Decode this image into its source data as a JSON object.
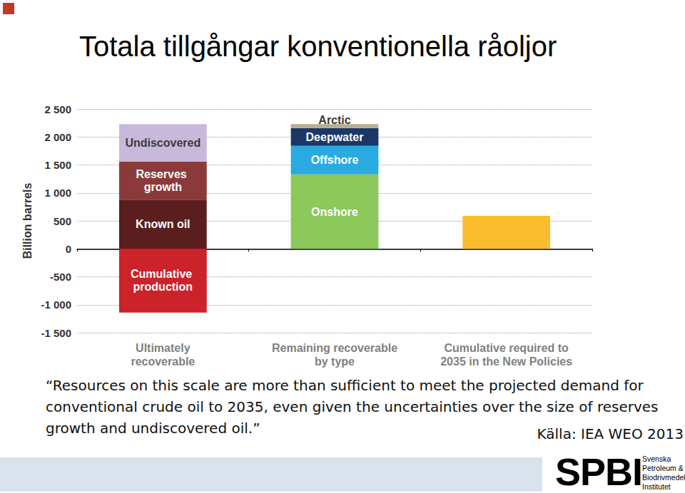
{
  "chart_data": {
    "type": "bar",
    "title": "Totala tillgångar konventionella råoljor",
    "y_label": "Billion barrels",
    "stacked": true,
    "grid": true,
    "categories": [
      "Ultimately\nrecoverable",
      "Remaining recoverable\nby type",
      "Cumulative required to\n2035 in the New Policies"
    ],
    "series": [
      {
        "name": "Known oil",
        "color": "#5a1e1e",
        "values": [
          880,
          null,
          null
        ]
      },
      {
        "name": "Reserves growth",
        "color": "#8b3a3a",
        "values": [
          680,
          null,
          null
        ]
      },
      {
        "name": "Undiscovered",
        "color": "#c7b9d9",
        "values": [
          670,
          null,
          null
        ]
      },
      {
        "name": "Cumulative production",
        "color": "#cc2229",
        "values": [
          -1140,
          null,
          null
        ]
      },
      {
        "name": "Onshore",
        "color": "#8cc85a",
        "values": [
          null,
          1330,
          null
        ]
      },
      {
        "name": "Offshore",
        "color": "#29abe2",
        "values": [
          null,
          510,
          null
        ]
      },
      {
        "name": "Deepwater",
        "color": "#1c3766",
        "values": [
          null,
          320,
          null
        ]
      },
      {
        "name": "Arctic",
        "color": "#b8ad8e",
        "values": [
          null,
          70,
          null
        ]
      },
      {
        "name": null,
        "color": "#fbbd2e",
        "values": [
          null,
          null,
          590
        ]
      }
    ],
    "ylim": [
      -1500,
      2500
    ],
    "yticks": [
      {
        "value": -1500,
        "label": "-1 500"
      },
      {
        "value": -1000,
        "label": "-1 000"
      },
      -500,
      0,
      500,
      {
        "value": 1000,
        "label": "1 000"
      },
      {
        "value": 1500,
        "label": "1 500"
      },
      {
        "value": 2000,
        "label": "2 000"
      },
      {
        "value": 2500,
        "label": "2 500"
      }
    ]
  },
  "caption": "“Resources on this scale are more than sufficient to meet the projected demand for conventional crude oil to 2035, even given the uncertainties over the size of reserves growth and undiscovered oil.”",
  "source": "Källa: IEA WEO 2013",
  "logo": {
    "text": "SPBI",
    "lines": [
      "Svenska",
      "Petroleum &",
      "Biodrivmedel",
      "Institutet"
    ]
  }
}
